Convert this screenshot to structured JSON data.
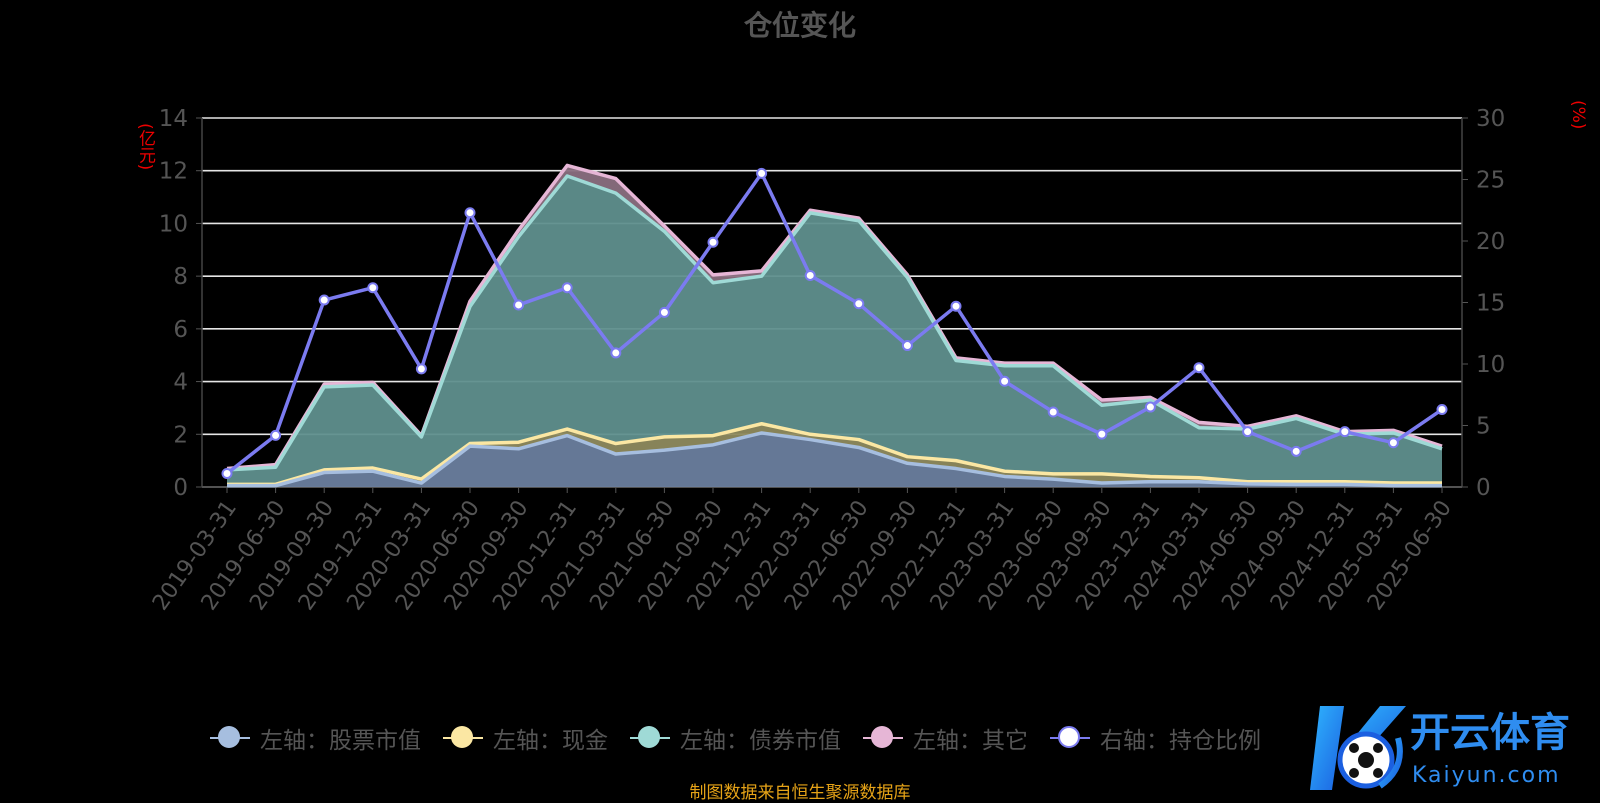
{
  "title": "仓位变化",
  "source_note": "制图数据来自恒生聚源数据库",
  "watermark": {
    "text_cn": "开云体育",
    "text_en": "Kaiyun.com"
  },
  "colors": {
    "stock": "#a6bedf",
    "cash": "#fbe7a3",
    "bond": "#9fdad6",
    "other": "#e6b6d6",
    "ratio": "#7b7bf0",
    "grid": "#ffffff",
    "axis_text": "#555555",
    "unit": "#ee0000",
    "source": "#e6a317"
  },
  "chart_data": {
    "type": "area",
    "title": "仓位变化",
    "categories": [
      "2019-03-31",
      "2019-06-30",
      "2019-09-30",
      "2019-12-31",
      "2020-03-31",
      "2020-06-30",
      "2020-09-30",
      "2020-12-31",
      "2021-03-31",
      "2021-06-30",
      "2021-09-30",
      "2021-12-31",
      "2022-03-31",
      "2022-06-30",
      "2022-09-30",
      "2022-12-31",
      "2023-03-31",
      "2023-06-30",
      "2023-09-30",
      "2023-12-31",
      "2024-03-31",
      "2024-06-30",
      "2024-09-30",
      "2024-12-31",
      "2025-03-31",
      "2025-06-30"
    ],
    "left_axis": {
      "unit": "(亿元)",
      "ylim": [
        0,
        14
      ],
      "ticks": [
        0,
        2,
        4,
        6,
        8,
        10,
        12,
        14
      ]
    },
    "right_axis": {
      "unit": "(%)",
      "ylim": [
        0,
        30
      ],
      "ticks": [
        0,
        5,
        10,
        15,
        20,
        25,
        30
      ]
    },
    "series": [
      {
        "name": "左轴：股票市值",
        "axis": "left",
        "stack": true,
        "values": [
          0.05,
          0.05,
          0.55,
          0.6,
          0.15,
          1.55,
          1.45,
          1.95,
          1.25,
          1.4,
          1.6,
          2.05,
          1.8,
          1.5,
          0.9,
          0.7,
          0.4,
          0.3,
          0.15,
          0.2,
          0.2,
          0.12,
          0.1,
          0.1,
          0.05,
          0.05
        ]
      },
      {
        "name": "左轴：现金",
        "axis": "left",
        "stack": true,
        "values": [
          0.05,
          0.05,
          0.1,
          0.12,
          0.15,
          0.1,
          0.25,
          0.25,
          0.4,
          0.5,
          0.35,
          0.35,
          0.2,
          0.3,
          0.25,
          0.3,
          0.2,
          0.2,
          0.35,
          0.2,
          0.15,
          0.08,
          0.1,
          0.1,
          0.1,
          0.1
        ]
      },
      {
        "name": "左轴：债券市值",
        "axis": "left",
        "stack": true,
        "values": [
          0.55,
          0.65,
          3.15,
          3.15,
          1.6,
          5.2,
          7.8,
          9.6,
          9.5,
          7.8,
          5.8,
          5.6,
          8.4,
          8.3,
          6.8,
          3.8,
          4.0,
          4.1,
          2.6,
          2.9,
          1.9,
          2.0,
          2.4,
          1.8,
          1.9,
          1.3
        ]
      },
      {
        "name": "左轴：其它",
        "axis": "left",
        "stack": true,
        "values": [
          0.05,
          0.1,
          0.1,
          0.1,
          0.05,
          0.2,
          0.25,
          0.4,
          0.55,
          0.2,
          0.3,
          0.2,
          0.1,
          0.1,
          0.1,
          0.1,
          0.1,
          0.1,
          0.2,
          0.1,
          0.2,
          0.1,
          0.1,
          0.1,
          0.1,
          0.1
        ]
      },
      {
        "name": "右轴：持仓比例",
        "axis": "right",
        "type": "line",
        "values": [
          1.1,
          4.2,
          15.2,
          16.2,
          9.6,
          22.3,
          14.8,
          16.2,
          10.9,
          14.2,
          19.9,
          25.5,
          17.2,
          14.9,
          11.5,
          14.7,
          8.6,
          6.1,
          4.3,
          6.5,
          9.7,
          4.5,
          2.9,
          4.5,
          3.6,
          6.3
        ]
      }
    ],
    "legend": [
      "左轴：股票市值",
      "左轴：现金",
      "左轴：债券市值",
      "左轴：其它",
      "右轴：持仓比例"
    ],
    "legend_position": "bottom",
    "grid": true
  }
}
